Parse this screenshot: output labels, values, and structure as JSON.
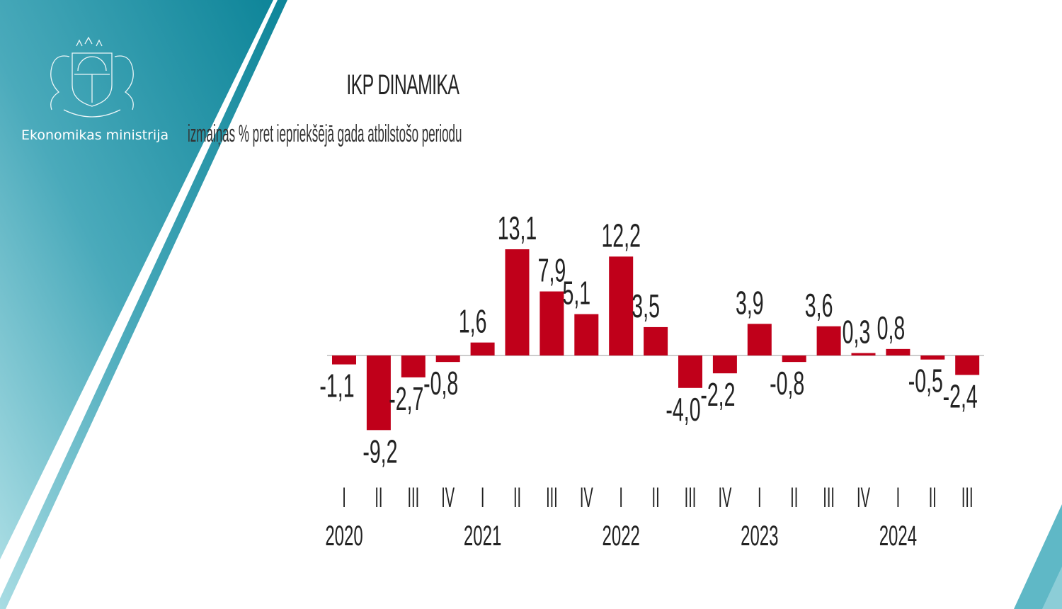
{
  "header": {
    "organization": "Ekonomikas ministrija",
    "logo": "Latvian coat of arms"
  },
  "colors": {
    "brand_teal": "#1a8fa3",
    "bar": "#c0001a"
  },
  "chart_data": {
    "type": "bar",
    "title": "IKP DINAMIKA",
    "subtitle": "izmaiņas % pret iepriekšējā gada atbilstošo periodu",
    "categories": [
      "I",
      "II",
      "III",
      "IV",
      "I",
      "II",
      "III",
      "IV",
      "I",
      "II",
      "III",
      "IV",
      "I",
      "II",
      "III",
      "IV",
      "I",
      "II",
      "III"
    ],
    "years": [
      {
        "label": "2020",
        "start_index": 0
      },
      {
        "label": "2021",
        "start_index": 4
      },
      {
        "label": "2022",
        "start_index": 8
      },
      {
        "label": "2023",
        "start_index": 12
      },
      {
        "label": "2024",
        "start_index": 16
      }
    ],
    "values": [
      -1.1,
      -9.2,
      -2.7,
      -0.8,
      1.6,
      13.1,
      7.9,
      5.1,
      12.2,
      3.5,
      -4.0,
      -2.2,
      3.9,
      -0.8,
      3.6,
      0.3,
      0.8,
      -0.5,
      -2.4
    ],
    "value_labels": [
      "-1,1",
      "-9,2",
      "-2,7",
      "-0,8",
      "1,6",
      "13,1",
      "7,9",
      "5,1",
      "12,2",
      "3,5",
      "-4,0",
      "-2,2",
      "3,9",
      "-0,8",
      "3,6",
      "0,3",
      "0,8",
      "-0,5",
      "-2,4"
    ],
    "xlabel": "",
    "ylabel": "",
    "grid": false,
    "legend": "none"
  }
}
